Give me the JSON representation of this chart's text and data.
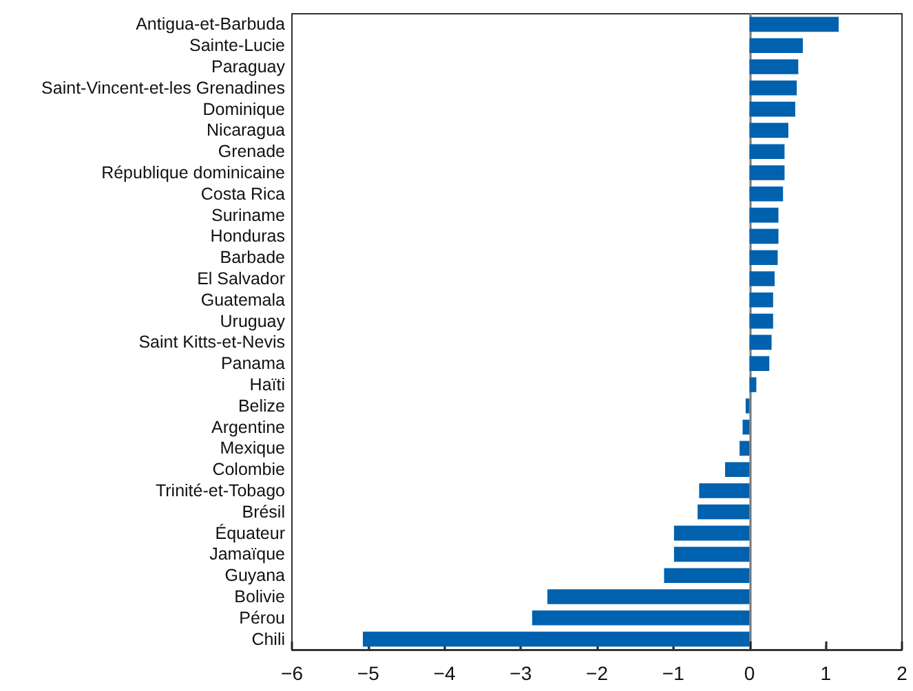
{
  "chart_data": {
    "type": "bar",
    "orientation": "horizontal",
    "categories": [
      "Antigua-et-Barbuda",
      "Sainte-Lucie",
      "Paraguay",
      "Saint-Vincent-et-les Grenadines",
      "Dominique",
      "Nicaragua",
      "Grenade",
      "République dominicaine",
      "Costa Rica",
      "Suriname",
      "Honduras",
      "Barbade",
      "El Salvador",
      "Guatemala",
      "Uruguay",
      "Saint Kitts-et-Nevis",
      "Panama",
      "Haïti",
      "Belize",
      "Argentine",
      "Mexique",
      "Colombie",
      "Trinité-et-Tobago",
      "Brésil",
      "Équateur",
      "Jamaïque",
      "Guyana",
      "Bolivie",
      "Pérou",
      "Chili"
    ],
    "values": [
      1.17,
      0.7,
      0.64,
      0.62,
      0.6,
      0.51,
      0.46,
      0.46,
      0.44,
      0.38,
      0.38,
      0.37,
      0.33,
      0.31,
      0.31,
      0.29,
      0.26,
      0.09,
      -0.05,
      -0.09,
      -0.13,
      -0.32,
      -0.66,
      -0.68,
      -0.99,
      -0.99,
      -1.12,
      -2.65,
      -2.85,
      -5.07
    ],
    "color": "#0061ae",
    "xlim": [
      -6,
      2
    ],
    "xticks": [
      {
        "value": -6,
        "label": "−6"
      },
      {
        "value": -5,
        "label": "−5"
      },
      {
        "value": -4,
        "label": "−4"
      },
      {
        "value": -3,
        "label": "−3"
      },
      {
        "value": -2,
        "label": "−2"
      },
      {
        "value": -1,
        "label": "−1"
      },
      0,
      1,
      2
    ]
  }
}
